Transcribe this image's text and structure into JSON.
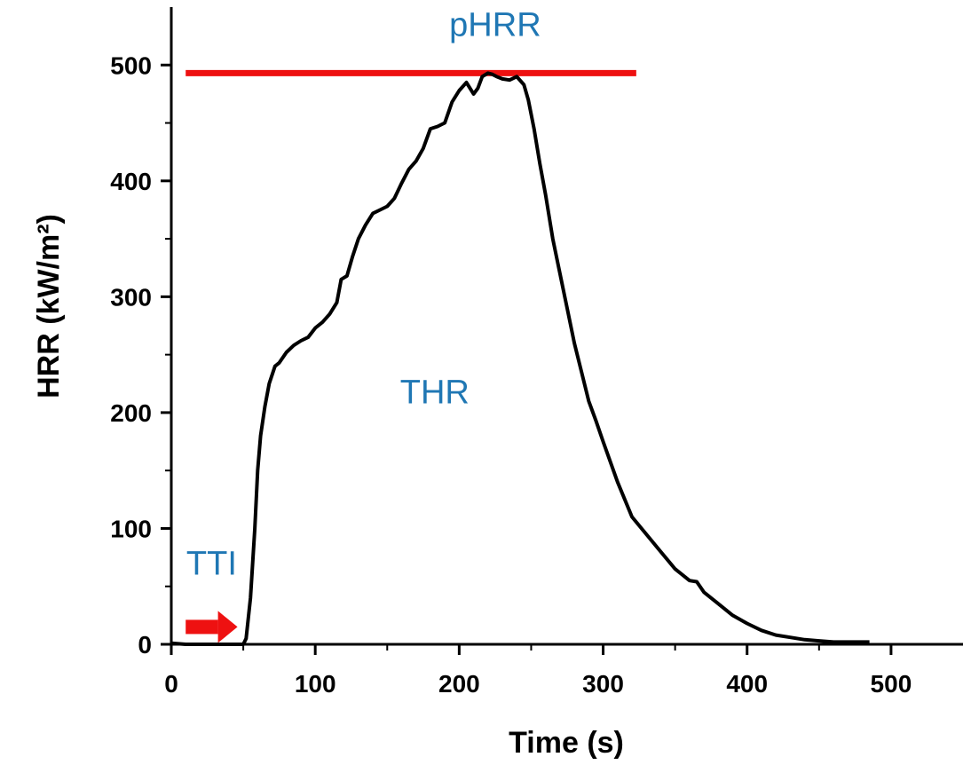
{
  "chart_data": {
    "type": "line",
    "xlabel": "Time (s)",
    "ylabel": "HRR (kW/m²)",
    "xlim": [
      0,
      550
    ],
    "ylim": [
      0,
      550
    ],
    "x_ticks": [
      0,
      100,
      200,
      300,
      400,
      500
    ],
    "y_ticks": [
      0,
      100,
      200,
      300,
      400,
      500
    ],
    "x_tick_labels": [
      "0",
      "100",
      "200",
      "300",
      "400",
      "500"
    ],
    "y_tick_labels": [
      "0",
      "100",
      "200",
      "300",
      "400",
      "500"
    ],
    "grid": false,
    "series": [
      {
        "color": "#000000",
        "x": [
          0,
          10,
          20,
          30,
          40,
          45,
          50,
          52,
          55,
          58,
          60,
          62,
          65,
          68,
          72,
          75,
          80,
          85,
          90,
          95,
          100,
          105,
          110,
          115,
          118,
          122,
          126,
          130,
          135,
          140,
          145,
          150,
          155,
          160,
          165,
          170,
          175,
          180,
          185,
          190,
          195,
          200,
          205,
          210,
          213,
          216,
          220,
          223,
          226,
          230,
          235,
          240,
          245,
          248,
          252,
          256,
          260,
          265,
          270,
          275,
          280,
          285,
          290,
          295,
          300,
          310,
          320,
          330,
          340,
          350,
          360,
          365,
          370,
          380,
          390,
          400,
          410,
          420,
          430,
          440,
          450,
          460,
          470,
          480,
          485
        ],
        "y": [
          1,
          0,
          0,
          0,
          0,
          0,
          0,
          5,
          40,
          100,
          150,
          180,
          205,
          225,
          240,
          243,
          252,
          258,
          262,
          265,
          273,
          278,
          285,
          295,
          315,
          318,
          335,
          350,
          362,
          372,
          375,
          378,
          385,
          398,
          410,
          417,
          428,
          445,
          447,
          450,
          468,
          478,
          485,
          475,
          480,
          490,
          493,
          492,
          490,
          488,
          487,
          490,
          483,
          470,
          445,
          415,
          388,
          350,
          320,
          290,
          260,
          235,
          210,
          193,
          175,
          140,
          110,
          95,
          80,
          65,
          55,
          54,
          45,
          35,
          25,
          18,
          12,
          8,
          6,
          4,
          3,
          2,
          2,
          2,
          2
        ]
      }
    ],
    "reference_line": {
      "label": "pHRR",
      "y": 493,
      "x_start": 10,
      "x_end": 323,
      "color": "#ee1111"
    },
    "annotations": [
      {
        "text": "pHRR",
        "x": 225,
        "y": 525,
        "color": "#1f77b4"
      },
      {
        "text": "THR",
        "x": 183,
        "y": 208,
        "color": "#1f77b4"
      },
      {
        "text": "TTI",
        "x": 28,
        "y": 60,
        "color": "#1f77b4"
      }
    ],
    "arrow": {
      "x_start": 10,
      "x_end": 46,
      "y": 15,
      "color": "#ee1111"
    }
  }
}
